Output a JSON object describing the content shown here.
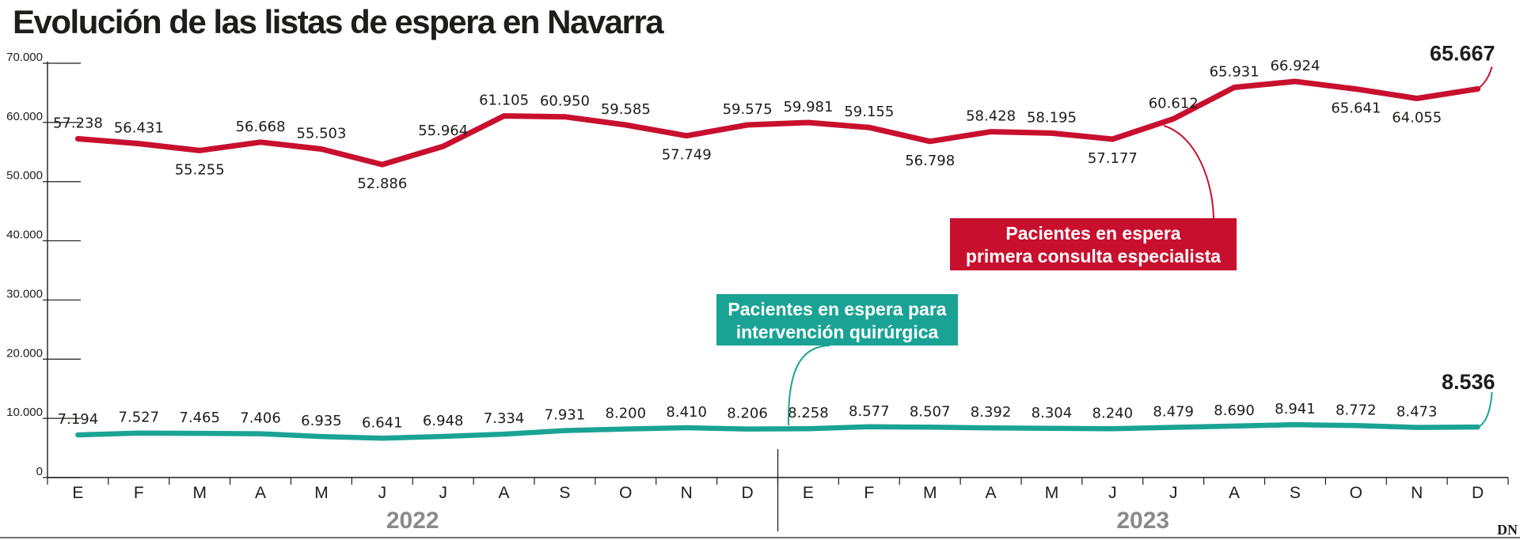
{
  "title": "Evolución de las listas de espera en Navarra",
  "brand": "DN",
  "chart_data": {
    "type": "line",
    "title": "Evolución de las listas de espera en Navarra",
    "categories": [
      "E",
      "F",
      "M",
      "A",
      "M",
      "J",
      "J",
      "A",
      "S",
      "O",
      "N",
      "D",
      "E",
      "F",
      "M",
      "A",
      "M",
      "J",
      "J",
      "A",
      "S",
      "O",
      "N",
      "D"
    ],
    "years": [
      {
        "label": "2022",
        "months": 12
      },
      {
        "label": "2023",
        "months": 12
      }
    ],
    "ylim": [
      0,
      70000
    ],
    "yticks": [
      0,
      10000,
      20000,
      30000,
      40000,
      50000,
      60000,
      70000
    ],
    "ytick_labels": [
      "0",
      "10.000",
      "20.000",
      "30.000",
      "40.000",
      "50.000",
      "60.000",
      "70.000"
    ],
    "grid": false,
    "series": [
      {
        "name": "Pacientes en espera primera consulta especialista",
        "name_lines": [
          "Pacientes en espera",
          "primera consulta especialista"
        ],
        "color": "#c8102e",
        "label_color": "#b5121b",
        "values": [
          57238,
          56431,
          55255,
          56668,
          55503,
          52886,
          55964,
          61105,
          60950,
          59585,
          57749,
          59575,
          59981,
          59155,
          56798,
          58428,
          58195,
          57177,
          60612,
          65931,
          66924,
          65641,
          64055,
          65667
        ],
        "labels": [
          "57.238",
          "56.431",
          "55.255",
          "56.668",
          "55.503",
          "52.886",
          "55.964",
          "61.105",
          "60.950",
          "59.585",
          "57.749",
          "59.575",
          "59.981",
          "59.155",
          "56.798",
          "58.428",
          "58.195",
          "57.177",
          "60.612",
          "65.931",
          "66.924",
          "65.641",
          "64.055",
          "65.667"
        ],
        "label_pos": [
          "above",
          "above",
          "below",
          "above",
          "above",
          "below",
          "above",
          "above",
          "above",
          "above",
          "below",
          "above",
          "above",
          "above",
          "below",
          "above",
          "above",
          "below",
          "above",
          "above",
          "above",
          "below",
          "below",
          "above"
        ]
      },
      {
        "name": "Pacientes en espera para intervención quirúrgica",
        "name_lines": [
          "Pacientes en espera para",
          "intervención quirúrgica"
        ],
        "color": "#1aa395",
        "label_color": "#1aa395",
        "values": [
          7194,
          7527,
          7465,
          7406,
          6935,
          6641,
          6948,
          7334,
          7931,
          8200,
          8410,
          8206,
          8258,
          8577,
          8507,
          8392,
          8304,
          8240,
          8479,
          8690,
          8941,
          8772,
          8473,
          8536
        ],
        "labels": [
          "7.194",
          "7.527",
          "7.465",
          "7.406",
          "6.935",
          "6.641",
          "6.948",
          "7.334",
          "7.931",
          "8.200",
          "8.410",
          "8.206",
          "8.258",
          "8.577",
          "8.507",
          "8.392",
          "8.304",
          "8.240",
          "8.479",
          "8.690",
          "8.941",
          "8.772",
          "8.473",
          "8.536"
        ],
        "label_pos": [
          "above",
          "above",
          "above",
          "above",
          "above",
          "above",
          "above",
          "above",
          "above",
          "above",
          "above",
          "above",
          "above",
          "above",
          "above",
          "above",
          "above",
          "above",
          "above",
          "above",
          "above",
          "above",
          "above",
          "above"
        ]
      }
    ]
  }
}
